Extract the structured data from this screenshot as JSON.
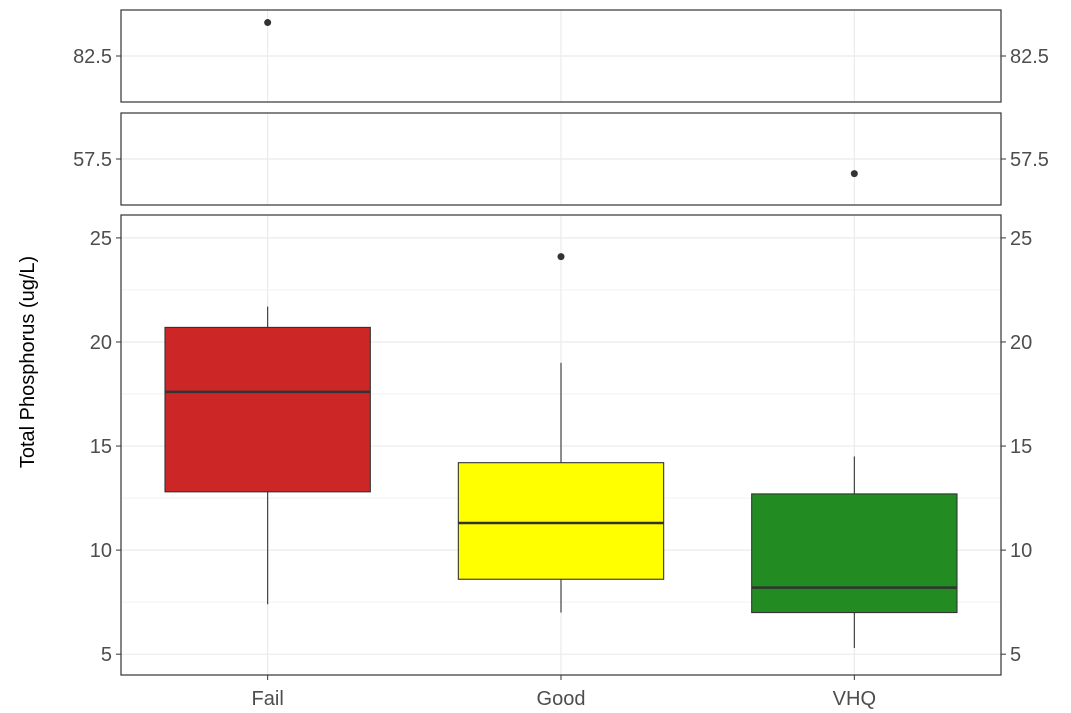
{
  "chart_data": {
    "type": "box",
    "ylabel": "Total Phosphorus (ug/L)",
    "xlabel": "",
    "categories": [
      "Fail",
      "Good",
      "VHQ"
    ],
    "y_scale": "broken",
    "panels": [
      {
        "ylim": [
          80.3,
          84.7
        ],
        "ticks": [
          82.5
        ]
      },
      {
        "ylim": [
          55.3,
          59.7
        ],
        "ticks": [
          57.5
        ]
      },
      {
        "ylim": [
          4,
          26.1
        ],
        "ticks": [
          5,
          10,
          15,
          20,
          25
        ]
      }
    ],
    "boxes": [
      {
        "category": "Fail",
        "whisker_low": 7.4,
        "q1": 12.8,
        "median": 17.6,
        "q3": 20.7,
        "whisker_high": 21.7,
        "outliers": [
          84.1
        ],
        "fill": "#cd2626"
      },
      {
        "category": "Good",
        "whisker_low": 7.0,
        "q1": 8.6,
        "median": 11.3,
        "q3": 14.2,
        "whisker_high": 19.0,
        "outliers": [
          24.1
        ],
        "fill": "#ffff00"
      },
      {
        "category": "VHQ",
        "whisker_low": 5.3,
        "q1": 7.0,
        "median": 8.2,
        "q3": 12.7,
        "whisker_high": 14.5,
        "outliers": [
          56.8
        ],
        "fill": "#228b22"
      }
    ],
    "grid": true,
    "legend": "none",
    "secondary_y_axis": "mirrored"
  }
}
